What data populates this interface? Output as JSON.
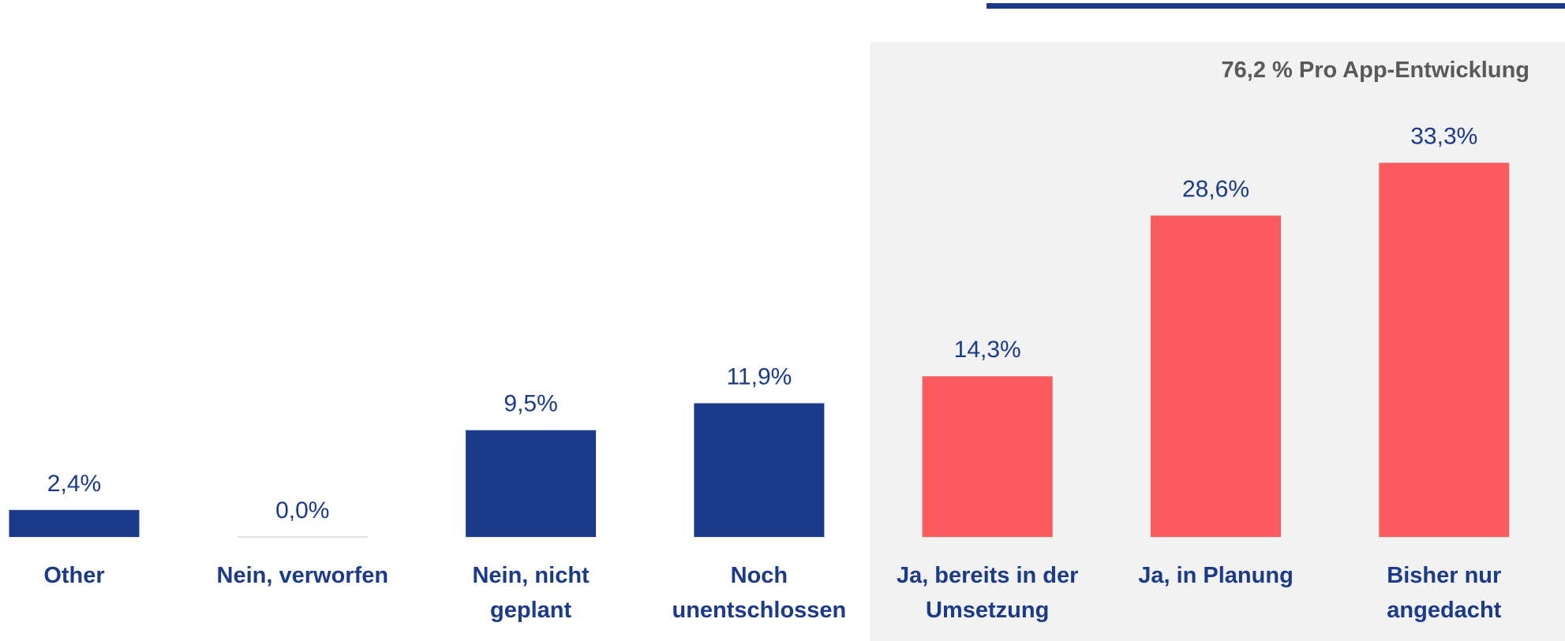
{
  "chart_data": {
    "type": "bar",
    "annotation": "76,2 % Pro App-Entwicklung",
    "categories": [
      "Other",
      "Nein, verworfen",
      "Nein, nicht\ngeplant",
      "Noch\nunentschlossen",
      "Ja, bereits in der\nUmsetzung",
      "Ja, in Planung",
      "Bisher nur\nangedacht"
    ],
    "values": [
      2.4,
      0.0,
      9.5,
      11.9,
      14.3,
      28.6,
      33.3
    ],
    "value_labels": [
      "2,4%",
      "0,0%",
      "9,5%",
      "11,9%",
      "14,3%",
      "28,6%",
      "33,3%"
    ],
    "colors": [
      "#1b3a8a",
      "#1b3a8a",
      "#1b3a8a",
      "#1b3a8a",
      "#fb5b5f",
      "#fb5b5f",
      "#fb5b5f"
    ],
    "ylim": [
      0,
      40
    ]
  }
}
